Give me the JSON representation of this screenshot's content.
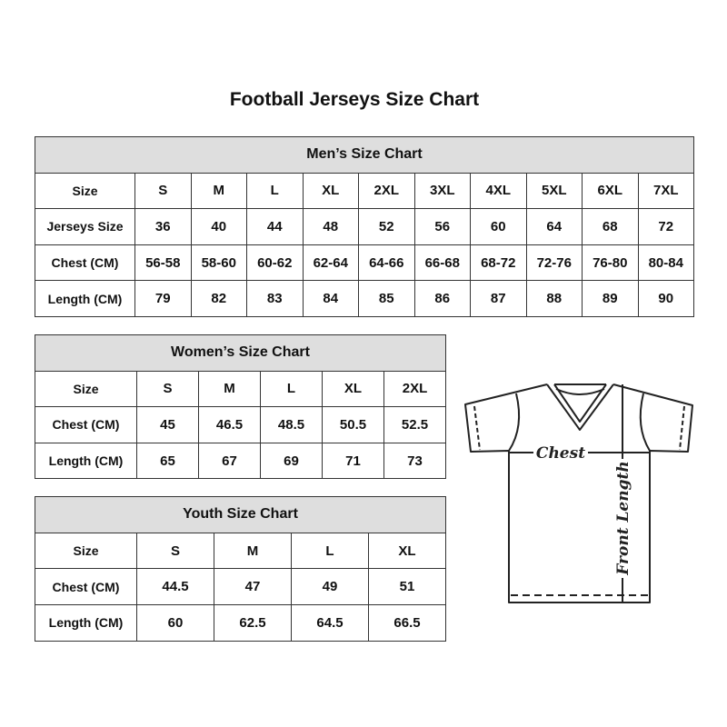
{
  "title": "Football Jerseys Size Chart",
  "men": {
    "heading": "Men’s Size Chart",
    "rows": [
      {
        "label": "Size",
        "values": [
          "S",
          "M",
          "L",
          "XL",
          "2XL",
          "3XL",
          "4XL",
          "5XL",
          "6XL",
          "7XL"
        ]
      },
      {
        "label": "Jerseys Size",
        "values": [
          "36",
          "40",
          "44",
          "48",
          "52",
          "56",
          "60",
          "64",
          "68",
          "72"
        ]
      },
      {
        "label": "Chest (CM)",
        "values": [
          "56-58",
          "58-60",
          "60-62",
          "62-64",
          "64-66",
          "66-68",
          "68-72",
          "72-76",
          "76-80",
          "80-84"
        ]
      },
      {
        "label": "Length (CM)",
        "values": [
          "79",
          "82",
          "83",
          "84",
          "85",
          "86",
          "87",
          "88",
          "89",
          "90"
        ]
      }
    ]
  },
  "women": {
    "heading": "Women’s Size Chart",
    "rows": [
      {
        "label": "Size",
        "values": [
          "S",
          "M",
          "L",
          "XL",
          "2XL"
        ]
      },
      {
        "label": "Chest (CM)",
        "values": [
          "45",
          "46.5",
          "48.5",
          "50.5",
          "52.5"
        ]
      },
      {
        "label": "Length (CM)",
        "values": [
          "65",
          "67",
          "69",
          "71",
          "73"
        ]
      }
    ]
  },
  "youth": {
    "heading": "Youth Size Chart",
    "rows": [
      {
        "label": "Size",
        "values": [
          "S",
          "M",
          "L",
          "XL"
        ]
      },
      {
        "label": "Chest (CM)",
        "values": [
          "44.5",
          "47",
          "49",
          "51"
        ]
      },
      {
        "label": "Length (CM)",
        "values": [
          "60",
          "62.5",
          "64.5",
          "66.5"
        ]
      }
    ]
  },
  "diagram": {
    "chest_label": "Chest",
    "length_label": "Front Length",
    "icon": "jersey-outline"
  },
  "colors": {
    "header_bg": "#dedede",
    "border": "#333333"
  }
}
